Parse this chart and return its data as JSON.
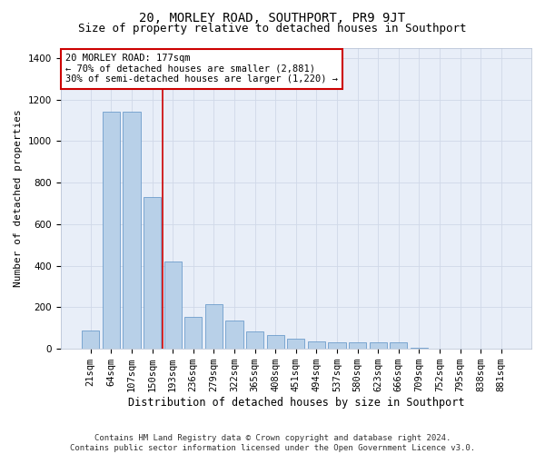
{
  "title": "20, MORLEY ROAD, SOUTHPORT, PR9 9JT",
  "subtitle": "Size of property relative to detached houses in Southport",
  "xlabel": "Distribution of detached houses by size in Southport",
  "ylabel": "Number of detached properties",
  "categories": [
    "21sqm",
    "64sqm",
    "107sqm",
    "150sqm",
    "193sqm",
    "236sqm",
    "279sqm",
    "322sqm",
    "365sqm",
    "408sqm",
    "451sqm",
    "494sqm",
    "537sqm",
    "580sqm",
    "623sqm",
    "666sqm",
    "709sqm",
    "752sqm",
    "795sqm",
    "838sqm",
    "881sqm"
  ],
  "values": [
    88,
    1140,
    1140,
    730,
    420,
    155,
    215,
    135,
    85,
    65,
    50,
    35,
    30,
    30,
    30,
    30,
    5,
    0,
    0,
    0,
    0
  ],
  "bar_color": "#b8d0e8",
  "bar_edge_color": "#5a8fc4",
  "vline_color": "#cc0000",
  "annotation_text": "20 MORLEY ROAD: 177sqm\n← 70% of detached houses are smaller (2,881)\n30% of semi-detached houses are larger (1,220) →",
  "annotation_box_color": "#ffffff",
  "annotation_box_edge": "#cc0000",
  "ylim": [
    0,
    1450
  ],
  "yticks": [
    0,
    200,
    400,
    600,
    800,
    1000,
    1200,
    1400
  ],
  "grid_color": "#d0d8e8",
  "bg_color": "#e8eef8",
  "footer": "Contains HM Land Registry data © Crown copyright and database right 2024.\nContains public sector information licensed under the Open Government Licence v3.0.",
  "title_fontsize": 10,
  "subtitle_fontsize": 9,
  "xlabel_fontsize": 8.5,
  "ylabel_fontsize": 8,
  "tick_fontsize": 7.5,
  "annot_fontsize": 7.5,
  "footer_fontsize": 6.5
}
